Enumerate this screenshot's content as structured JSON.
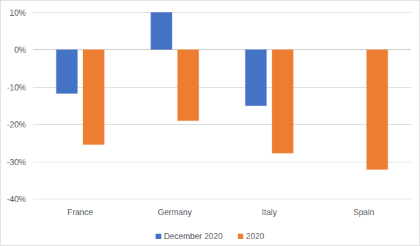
{
  "chart_data": {
    "type": "bar",
    "categories": [
      "France",
      "Germany",
      "Italy",
      "Spain"
    ],
    "series": [
      {
        "name": "December 2020",
        "color": "#4472c4",
        "values": [
          -11.8,
          10,
          -15.1,
          null
        ]
      },
      {
        "name": "2020",
        "color": "#ed7d31",
        "values": [
          -25.5,
          -19.1,
          -27.8,
          -32.2
        ]
      }
    ],
    "ylim": [
      -40,
      10
    ],
    "yticks": [
      {
        "value": -40,
        "label": "-40%"
      },
      {
        "value": -30,
        "label": "-30%"
      },
      {
        "value": -20,
        "label": "-20%"
      },
      {
        "value": -10,
        "label": "-10%"
      },
      {
        "value": 0,
        "label": "0%"
      },
      {
        "value": 10,
        "label": "10%"
      }
    ],
    "grid": true,
    "legend": "bottom"
  }
}
